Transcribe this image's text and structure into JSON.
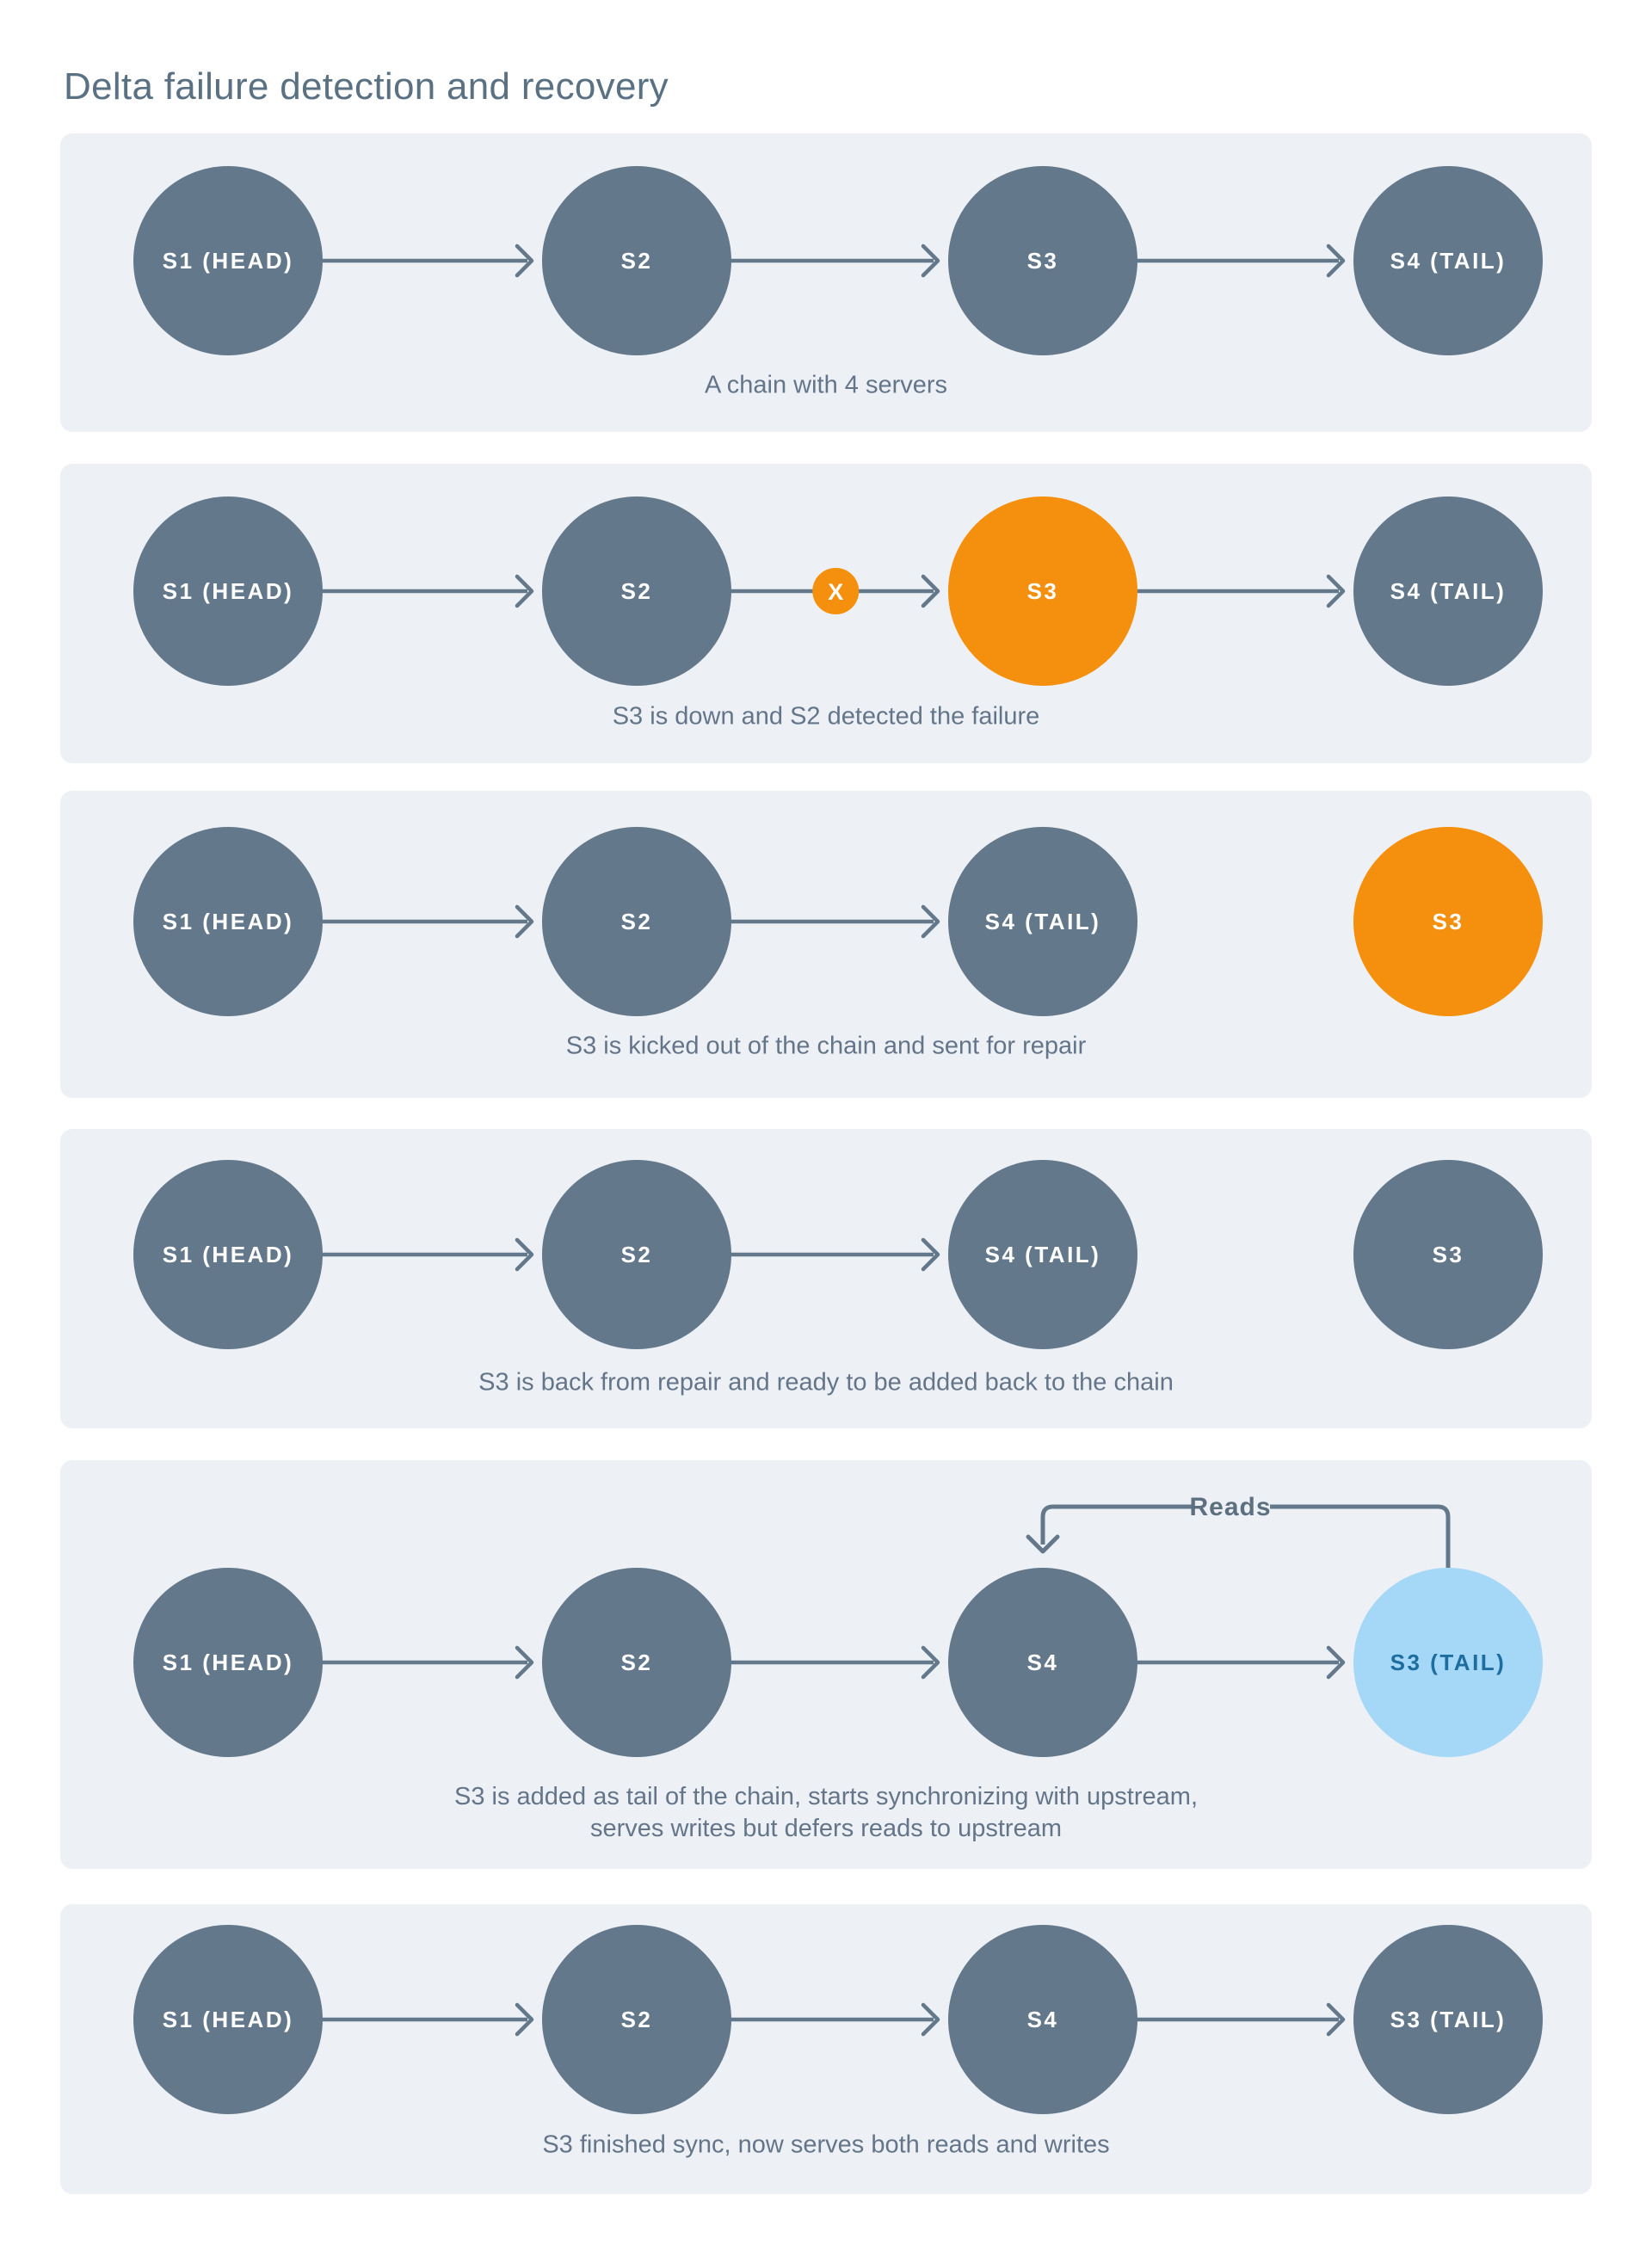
{
  "title": "Delta failure detection and recovery",
  "colors": {
    "page_bg": "#ffffff",
    "panel_bg": "#edf1f5",
    "node_slate": "#64788c",
    "node_orange": "#f5900e",
    "node_blue": "#a5d8f6",
    "node_blue_text": "#1d6da1",
    "arrow": "#64788c",
    "caption_text": "#64758a",
    "title_text": "#5a7184",
    "node_text": "#ffffff",
    "reads_text": "#5d7080"
  },
  "panels": [
    {
      "name": "chain-with-4-servers",
      "caption": [
        "A chain with 4 servers"
      ],
      "nodes": [
        {
          "label": "S1 (HEAD)",
          "style": "slate"
        },
        {
          "label": "S2",
          "style": "slate"
        },
        {
          "label": "S3",
          "style": "slate"
        },
        {
          "label": "S4 (TAIL)",
          "style": "slate"
        }
      ],
      "arrows": [
        [
          0,
          1
        ],
        [
          1,
          2
        ],
        [
          2,
          3
        ]
      ]
    },
    {
      "name": "s3-down-s2-detected",
      "caption": [
        "S3 is down and S2 detected the failure"
      ],
      "nodes": [
        {
          "label": "S1 (HEAD)",
          "style": "slate"
        },
        {
          "label": "S2",
          "style": "slate"
        },
        {
          "label": "S3",
          "style": "orange"
        },
        {
          "label": "S4 (TAIL)",
          "style": "slate"
        }
      ],
      "arrows": [
        [
          0,
          1
        ],
        [
          1,
          2
        ],
        [
          2,
          3
        ]
      ],
      "failure_badge": {
        "label": "X",
        "on_arrow": 1
      }
    },
    {
      "name": "s3-kicked-out",
      "caption": [
        "S3 is kicked out of the chain and sent for repair"
      ],
      "nodes": [
        {
          "label": "S1 (HEAD)",
          "style": "slate"
        },
        {
          "label": "S2",
          "style": "slate"
        },
        {
          "label": "S4 (TAIL)",
          "style": "slate"
        },
        {
          "label": "S3",
          "style": "orange",
          "detached": true
        }
      ],
      "arrows": [
        [
          0,
          1
        ],
        [
          1,
          2
        ]
      ]
    },
    {
      "name": "s3-back-from-repair",
      "caption": [
        "S3 is back from repair and ready to be added back to the chain"
      ],
      "nodes": [
        {
          "label": "S1 (HEAD)",
          "style": "slate"
        },
        {
          "label": "S2",
          "style": "slate"
        },
        {
          "label": "S4 (TAIL)",
          "style": "slate"
        },
        {
          "label": "S3",
          "style": "slate",
          "detached": true
        }
      ],
      "arrows": [
        [
          0,
          1
        ],
        [
          1,
          2
        ]
      ]
    },
    {
      "name": "s3-added-as-tail",
      "caption": [
        "S3 is added as tail of the chain, starts synchronizing with upstream,",
        "serves writes but defers reads to upstream"
      ],
      "nodes": [
        {
          "label": "S1 (HEAD)",
          "style": "slate"
        },
        {
          "label": "S2",
          "style": "slate"
        },
        {
          "label": "S4",
          "style": "slate"
        },
        {
          "label": "S3 (TAIL)",
          "style": "blue"
        }
      ],
      "arrows": [
        [
          0,
          1
        ],
        [
          1,
          2
        ],
        [
          2,
          3
        ]
      ],
      "reads_arrow": {
        "label": "Reads",
        "from_node": 3,
        "to_node": 2
      }
    },
    {
      "name": "s3-finished-sync",
      "caption": [
        "S3 finished sync, now serves both reads and writes"
      ],
      "nodes": [
        {
          "label": "S1 (HEAD)",
          "style": "slate"
        },
        {
          "label": "S2",
          "style": "slate"
        },
        {
          "label": "S4",
          "style": "slate"
        },
        {
          "label": "S3 (TAIL)",
          "style": "slate"
        }
      ],
      "arrows": [
        [
          0,
          1
        ],
        [
          1,
          2
        ],
        [
          2,
          3
        ]
      ]
    }
  ]
}
